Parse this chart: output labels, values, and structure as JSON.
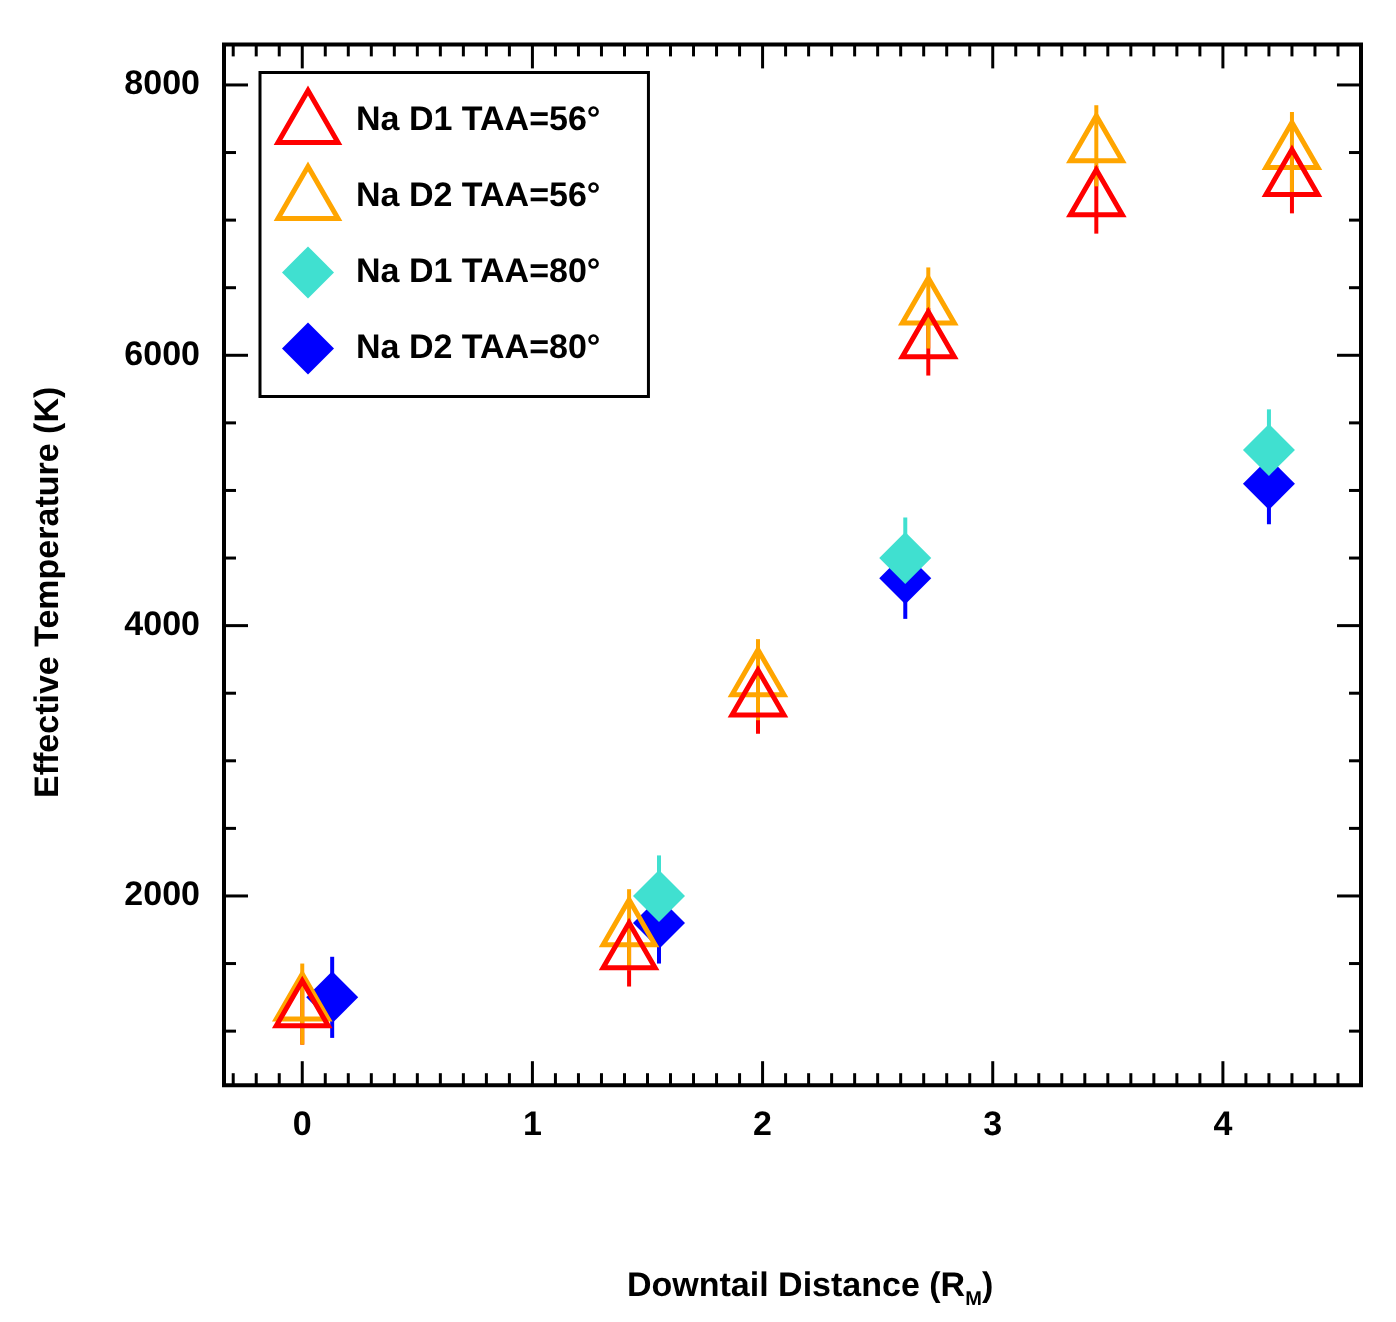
{
  "chart_data": {
    "type": "scatter",
    "xlabel": "Downtail Distance (R$_{M}$)",
    "ylabel": "Effective Temperature (K)",
    "xlim": [
      -0.34,
      4.6
    ],
    "ylim": [
      600,
      8300
    ],
    "xticks": [
      {
        "value": -0.3,
        "label": null
      },
      {
        "value": -0.2,
        "label": null
      },
      {
        "value": -0.1,
        "label": null
      },
      0,
      {
        "value": 0.1,
        "label": null
      },
      {
        "value": 0.2,
        "label": null
      },
      {
        "value": 0.3,
        "label": null
      },
      {
        "value": 0.4,
        "label": null
      },
      {
        "value": 0.5,
        "label": null
      },
      {
        "value": 0.6,
        "label": null
      },
      {
        "value": 0.7,
        "label": null
      },
      {
        "value": 0.8,
        "label": null
      },
      {
        "value": 0.9,
        "label": null
      },
      1,
      {
        "value": 1.1,
        "label": null
      },
      {
        "value": 1.2,
        "label": null
      },
      {
        "value": 1.3,
        "label": null
      },
      {
        "value": 1.4,
        "label": null
      },
      {
        "value": 1.5,
        "label": null
      },
      {
        "value": 1.6,
        "label": null
      },
      {
        "value": 1.7,
        "label": null
      },
      {
        "value": 1.8,
        "label": null
      },
      {
        "value": 1.9,
        "label": null
      },
      2,
      {
        "value": 2.1,
        "label": null
      },
      {
        "value": 2.2,
        "label": null
      },
      {
        "value": 2.3,
        "label": null
      },
      {
        "value": 2.4,
        "label": null
      },
      {
        "value": 2.5,
        "label": null
      },
      {
        "value": 2.6,
        "label": null
      },
      {
        "value": 2.7,
        "label": null
      },
      {
        "value": 2.8,
        "label": null
      },
      {
        "value": 2.9,
        "label": null
      },
      3,
      {
        "value": 3.1,
        "label": null
      },
      {
        "value": 3.2,
        "label": null
      },
      {
        "value": 3.3,
        "label": null
      },
      {
        "value": 3.4,
        "label": null
      },
      {
        "value": 3.5,
        "label": null
      },
      {
        "value": 3.6,
        "label": null
      },
      {
        "value": 3.7,
        "label": null
      },
      {
        "value": 3.8,
        "label": null
      },
      {
        "value": 3.9,
        "label": null
      },
      4,
      {
        "value": 4.1,
        "label": null
      },
      {
        "value": 4.2,
        "label": null
      },
      {
        "value": 4.3,
        "label": null
      },
      {
        "value": 4.4,
        "label": null
      },
      {
        "value": 4.5,
        "label": null
      }
    ],
    "yticks": [
      {
        "value": 1000,
        "label": null
      },
      {
        "value": 1500,
        "label": null
      },
      2000,
      {
        "value": 2500,
        "label": null
      },
      {
        "value": 3000,
        "label": null
      },
      {
        "value": 3500,
        "label": null
      },
      4000,
      {
        "value": 4500,
        "label": null
      },
      {
        "value": 5000,
        "label": null
      },
      {
        "value": 5500,
        "label": null
      },
      6000,
      {
        "value": 6500,
        "label": null
      },
      {
        "value": 7000,
        "label": null
      },
      {
        "value": 7500,
        "label": null
      },
      8000
    ],
    "grid": false,
    "legend": "top left",
    "series": [
      {
        "name": "Na D1 TAA=56°",
        "color": "#ff0000",
        "marker": "triangle",
        "x": [
          0,
          1.42,
          1.98,
          2.72,
          3.45,
          4.3
        ],
        "values": [
          1150,
          1580,
          3450,
          6100,
          7150,
          7300
        ],
        "errors": [
          250,
          250,
          250,
          250,
          250,
          250
        ]
      },
      {
        "name": "Na D2 TAA=56°",
        "color": "#ffa500",
        "marker": "triangle",
        "x": [
          0,
          1.42,
          1.98,
          2.72,
          3.45,
          4.3
        ],
        "values": [
          1200,
          1750,
          3600,
          6350,
          7550,
          7500
        ],
        "errors": [
          300,
          300,
          300,
          300,
          300,
          300
        ]
      },
      {
        "name": "Na D1 TAA=80°",
        "color": "#40e0d0",
        "marker": "diamond",
        "x": [
          1.55,
          2.62,
          4.2
        ],
        "values": [
          2000,
          4500,
          5300
        ],
        "errors": [
          300,
          300,
          300
        ]
      },
      {
        "name": "Na D2 TAA=80°",
        "color": "#0000ff",
        "marker": "diamond",
        "x": [
          0.13,
          1.55,
          2.62,
          4.2
        ],
        "values": [
          1250,
          1800,
          4350,
          5050
        ],
        "errors": [
          300,
          300,
          300,
          300
        ]
      }
    ]
  }
}
